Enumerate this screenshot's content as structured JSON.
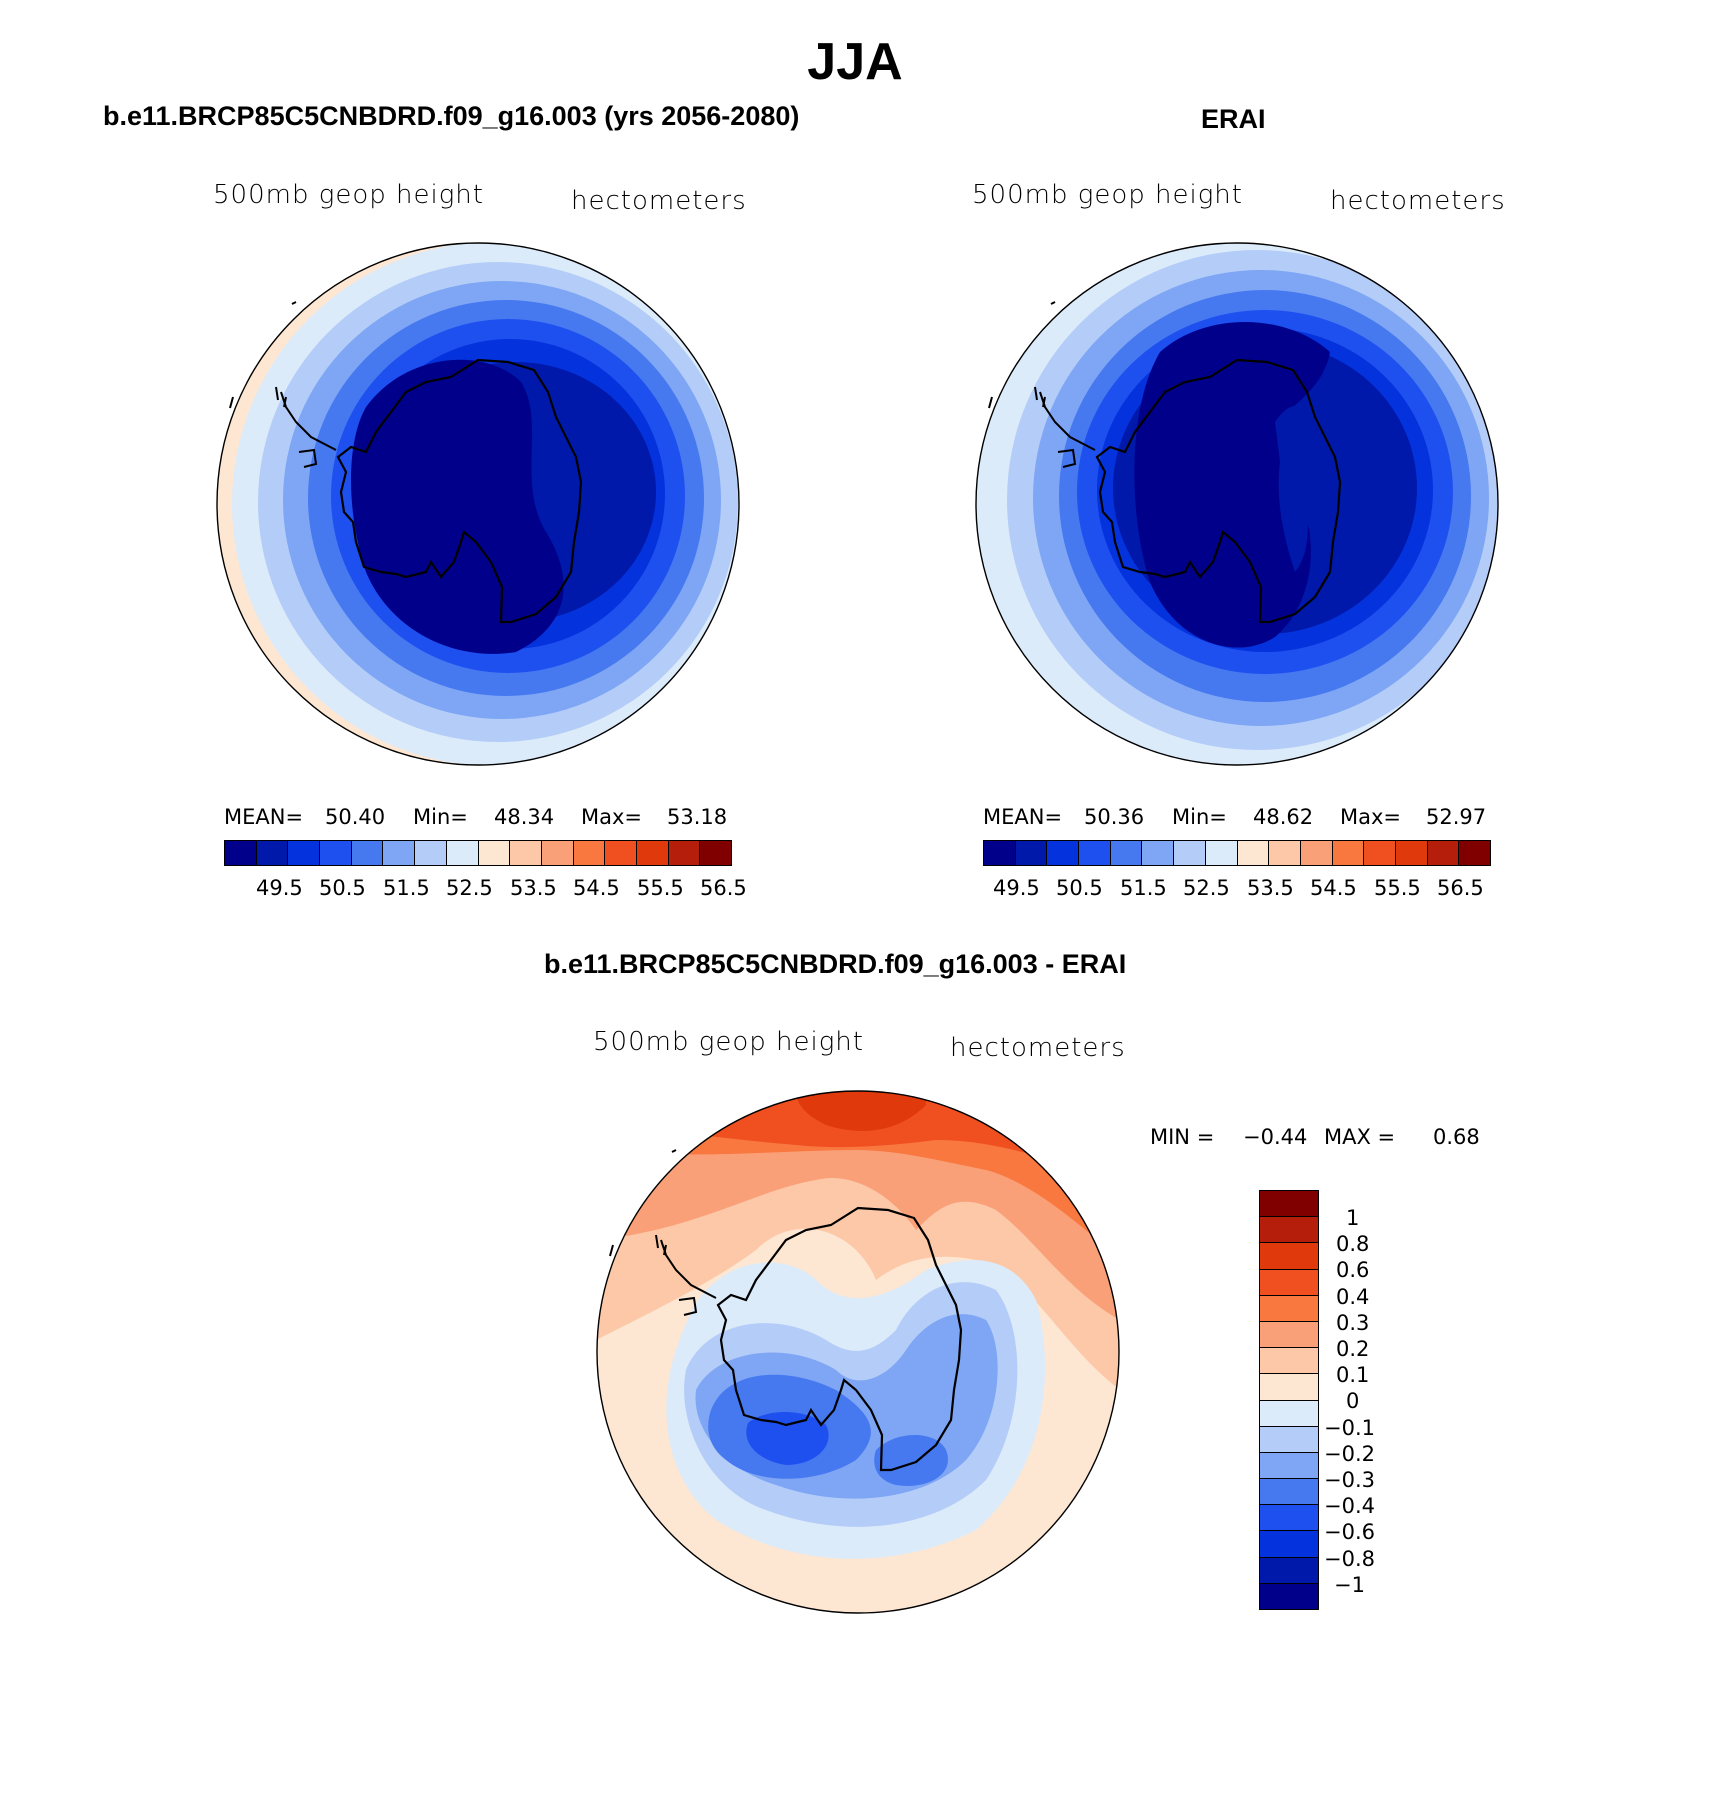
{
  "title": "JJA",
  "panels": [
    {
      "name": "model",
      "title": "b.e11.BRCP85C5CNBDRD.f09_g16.003 (yrs 2056-2080)",
      "left_label": "500mb geop height",
      "right_label": "hectometers",
      "stats": {
        "mean_label": "MEAN=",
        "mean": "50.40",
        "min_label": "Min=",
        "min": "48.34",
        "max_label": "Max=",
        "max": "53.18"
      }
    },
    {
      "name": "obs",
      "title": "ERAI",
      "left_label": "500mb geop height",
      "right_label": "hectometers",
      "stats": {
        "mean_label": "MEAN=",
        "mean": "50.36",
        "min_label": "Min=",
        "min": "48.62",
        "max_label": "Max=",
        "max": "52.97"
      }
    },
    {
      "name": "diff",
      "title": "b.e11.BRCP85C5CNBDRD.f09_g16.003 - ERAI",
      "left_label": "500mb geop height",
      "right_label": "hectometers",
      "stats": {
        "min_label": "MIN =",
        "min": "−0.44",
        "max_label": "MAX =",
        "max": "0.68"
      }
    }
  ],
  "colorbar_abs": {
    "colors": [
      "#00008b",
      "#0019aa",
      "#0432dc",
      "#1e50f0",
      "#4678f0",
      "#7ea6f5",
      "#b4ccf8",
      "#dcebfa",
      "#fde6d2",
      "#fcc8a8",
      "#faa078",
      "#f87840",
      "#f05020",
      "#e03a0c",
      "#b41e0a",
      "#800000"
    ],
    "labels": [
      "49.5",
      "50.5",
      "51.5",
      "52.5",
      "53.5",
      "54.5",
      "55.5",
      "56.5"
    ]
  },
  "colorbar_diff": {
    "colors": [
      "#800000",
      "#b41e0a",
      "#e03a0c",
      "#f05020",
      "#f87840",
      "#faa078",
      "#fcc8a8",
      "#fde6d2",
      "#dcebfa",
      "#b4ccf8",
      "#7ea6f5",
      "#4678f0",
      "#1e50f0",
      "#0432dc",
      "#0019aa",
      "#00008b"
    ],
    "labels": [
      "1",
      "0.8",
      "0.6",
      "0.4",
      "0.3",
      "0.2",
      "0.1",
      "0",
      "−0.1",
      "−0.2",
      "−0.3",
      "−0.4",
      "−0.6",
      "−0.8",
      "−1"
    ]
  },
  "palette": {
    "dark_navy": "#00008b",
    "navy": "#0019aa",
    "deep_blue": "#0432dc",
    "royal_blue": "#1e50f0",
    "mid_blue": "#4678f0",
    "light_blue": "#7ea6f5",
    "pale_blue": "#b4ccf8",
    "ice": "#dcebfa",
    "cream": "#fde6d2",
    "peach": "#fcc8a8",
    "salmon": "#faa078",
    "orange": "#f87840",
    "red_orange": "#f05020",
    "red": "#e03a0c"
  }
}
